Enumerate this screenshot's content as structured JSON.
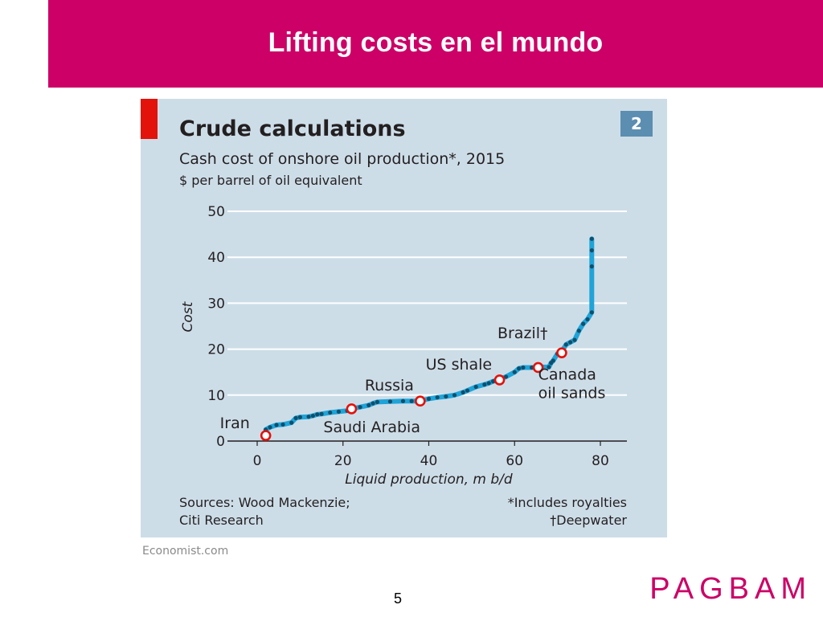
{
  "slide": {
    "title": "Lifting costs en el mundo",
    "page_number": "5",
    "brand": "PAGBAM",
    "credit": "Economist.com",
    "banner_color": "#cc0066"
  },
  "chart_data": {
    "type": "line",
    "title": "Crude calculations",
    "subtitle": "Cash cost of onshore oil production*, 2015",
    "unit": "$ per barrel of oil equivalent",
    "badge": "2",
    "xlabel": "Liquid production, m b/d",
    "ylabel": "Cost",
    "xlim": [
      0,
      80
    ],
    "ylim": [
      0,
      50
    ],
    "xticks": [
      0,
      20,
      40,
      60,
      80
    ],
    "yticks": [
      0,
      10,
      20,
      30,
      40,
      50
    ],
    "grid": true,
    "line_color": "#1fa4d8",
    "point_color": "#0f4f6e",
    "highlight_color": "#e3120b",
    "series": [
      {
        "points": [
          [
            2,
            2.5
          ],
          [
            3,
            3
          ],
          [
            4.5,
            3.5
          ],
          [
            6,
            3.6
          ],
          [
            8,
            4
          ],
          [
            9,
            5
          ],
          [
            10,
            5.2
          ],
          [
            12,
            5.3
          ],
          [
            13,
            5.5
          ],
          [
            14,
            5.8
          ],
          [
            15,
            5.9
          ],
          [
            17,
            6.2
          ],
          [
            19,
            6.4
          ],
          [
            21,
            6.6
          ],
          [
            22,
            7
          ],
          [
            24,
            7.4
          ],
          [
            26,
            7.8
          ],
          [
            27,
            8.2
          ],
          [
            28,
            8.5
          ],
          [
            31,
            8.6
          ],
          [
            34,
            8.7
          ],
          [
            36,
            8.7
          ],
          [
            38,
            8.7
          ],
          [
            40,
            9.2
          ],
          [
            42,
            9.5
          ],
          [
            44,
            9.7
          ],
          [
            46,
            10
          ],
          [
            48,
            10.6
          ],
          [
            49,
            11
          ],
          [
            51,
            11.8
          ],
          [
            53,
            12.3
          ],
          [
            54,
            12.6
          ],
          [
            55,
            13
          ],
          [
            56,
            13.3
          ],
          [
            58,
            14
          ],
          [
            60,
            15
          ],
          [
            61,
            15.8
          ],
          [
            62,
            16
          ],
          [
            64,
            16
          ],
          [
            66,
            16.1
          ],
          [
            68,
            16.1
          ],
          [
            68.5,
            17
          ],
          [
            69,
            17.5
          ],
          [
            70,
            19
          ],
          [
            71,
            19.5
          ],
          [
            72,
            21
          ],
          [
            73,
            21.5
          ],
          [
            74,
            22
          ],
          [
            75,
            24
          ],
          [
            76,
            25.5
          ],
          [
            77,
            26.5
          ],
          [
            78,
            28
          ],
          [
            78,
            38
          ],
          [
            78,
            41.5
          ],
          [
            78,
            44
          ]
        ]
      }
    ],
    "highlights": [
      {
        "label": "Iran",
        "x": 2,
        "y": 1.2
      },
      {
        "label": "Saudi Arabia",
        "x": 22,
        "y": 7
      },
      {
        "label": "Russia",
        "x": 38,
        "y": 8.7
      },
      {
        "label": "US shale",
        "x": 56.5,
        "y": 13.3
      },
      {
        "label": "Canada oil sands",
        "x": 65.5,
        "y": 16
      },
      {
        "label": "Brazil†",
        "x": 71,
        "y": 19.2
      }
    ],
    "sources": [
      "Sources: Wood Mackenzie;",
      "Citi Research"
    ],
    "notes": [
      "*Includes royalties",
      "†Deepwater"
    ]
  }
}
